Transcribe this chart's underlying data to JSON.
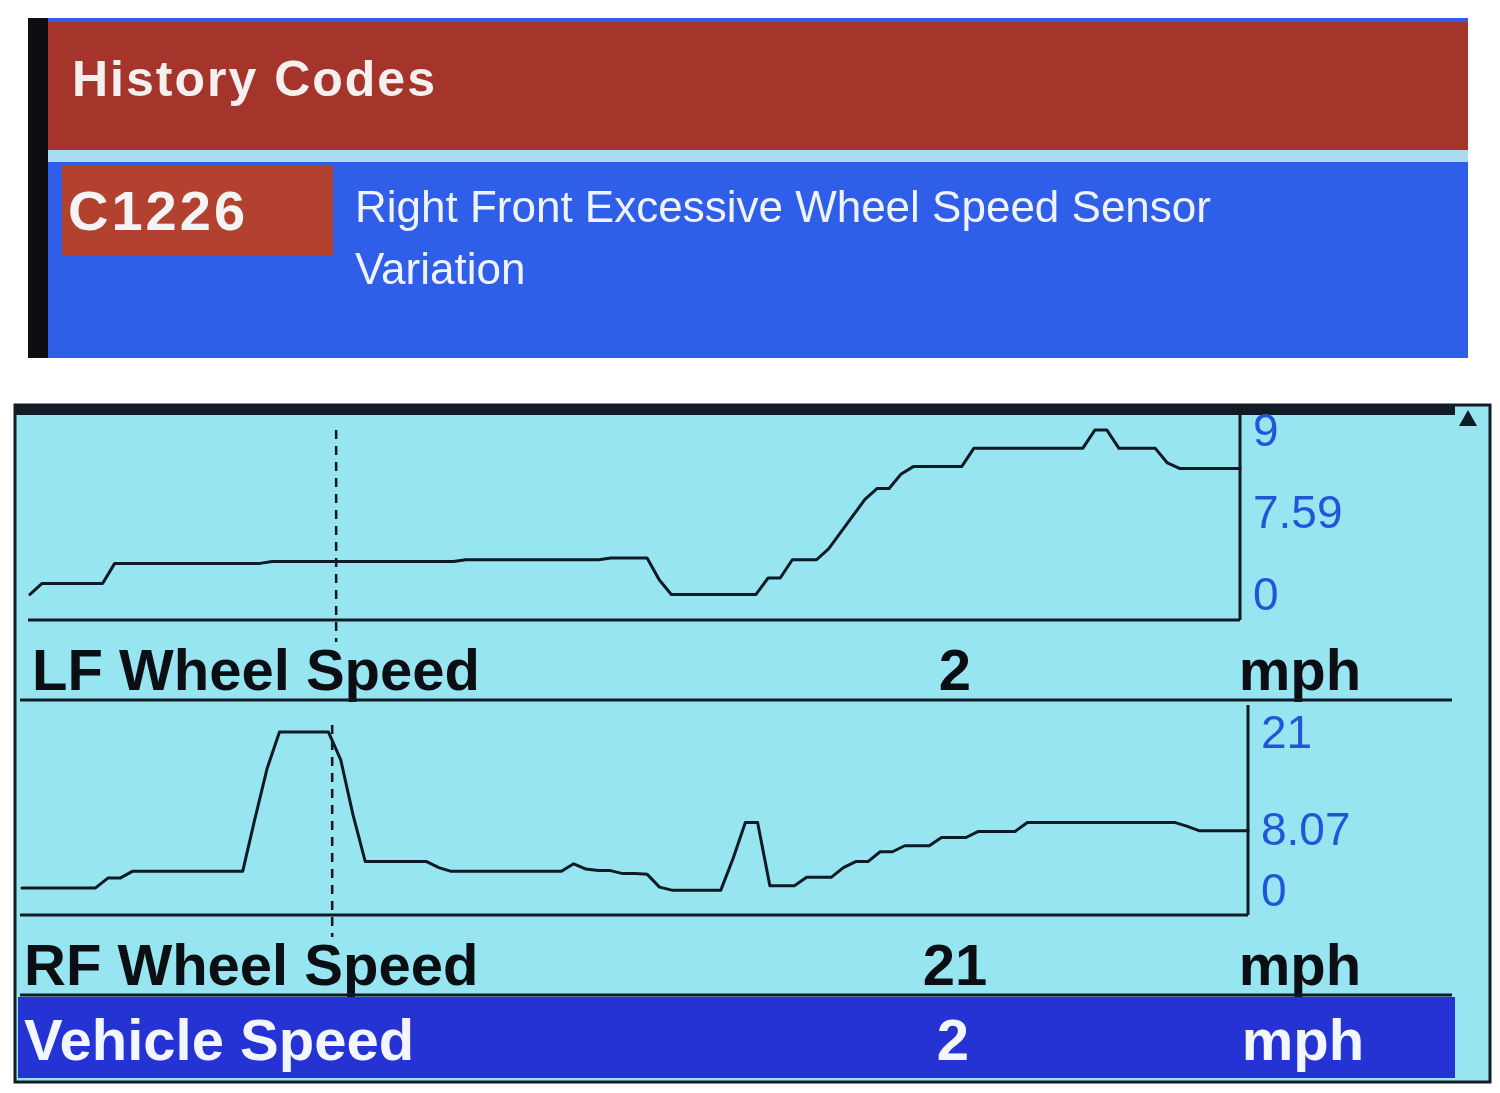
{
  "chart_data": [
    {
      "type": "other",
      "title": "History Codes",
      "annotations": [
        "C1226",
        "Right Front Excessive Wheel Speed Sensor Variation"
      ]
    },
    {
      "type": "line",
      "title": "LF Wheel Speed",
      "ylabel": "mph",
      "annotations": [
        "7.59",
        "2"
      ],
      "categories": [
        null,
        null,
        null,
        null,
        null,
        null,
        null,
        null,
        null,
        null,
        null,
        null,
        null,
        null,
        null,
        null,
        null,
        null,
        null,
        null,
        null,
        null,
        null,
        null,
        null,
        null,
        null,
        null,
        null,
        null,
        null,
        null,
        null,
        null,
        null,
        null,
        null,
        null,
        null,
        null,
        null,
        null,
        null,
        null,
        null,
        null,
        null,
        null,
        null,
        null,
        null,
        null,
        null,
        null,
        null,
        null,
        null,
        null,
        null,
        null,
        null,
        null,
        null,
        null,
        null,
        null,
        null,
        null,
        null,
        null,
        null,
        null,
        null,
        null,
        null,
        null,
        null,
        null,
        null,
        null,
        null,
        null,
        null,
        null,
        null,
        null,
        null,
        null,
        null,
        null,
        null,
        null,
        null,
        null,
        null,
        null,
        null,
        null,
        null,
        null,
        null
      ],
      "series": [
        {
          "color": "#0f1a24",
          "values": [
            0,
            0.6,
            0.6,
            0.6,
            0.6,
            0.6,
            0.6,
            1.7,
            1.7,
            1.7,
            1.7,
            1.7,
            1.7,
            1.7,
            1.7,
            1.7,
            1.7,
            1.7,
            1.7,
            1.7,
            1.8,
            1.8,
            1.8,
            1.8,
            1.8,
            1.8,
            1.8,
            1.8,
            1.8,
            1.8,
            1.8,
            1.8,
            1.8,
            1.8,
            1.8,
            1.8,
            1.9,
            1.9,
            1.9,
            1.9,
            1.9,
            1.9,
            1.9,
            1.9,
            1.9,
            1.9,
            1.9,
            1.9,
            2.0,
            2.0,
            2.0,
            2.0,
            0.8,
            0,
            0,
            0,
            0,
            0,
            0,
            0,
            0,
            0.9,
            0.9,
            1.9,
            1.9,
            1.9,
            2.5,
            3.4,
            4.3,
            5.2,
            5.8,
            5.8,
            6.6,
            7.0,
            7.0,
            7.0,
            7.0,
            7.0,
            8.0,
            8.0,
            8.0,
            8.0,
            8.0,
            8.0,
            8.0,
            8.0,
            8.0,
            8.0,
            9,
            9,
            8.0,
            8.0,
            8.0,
            8.0,
            7.2,
            6.9,
            6.9,
            6.9,
            6.9,
            6.9,
            6.9
          ]
        }
      ],
      "ylim": [
        -1.4,
        10.1
      ],
      "yticks": [
        0,
        9
      ],
      "tick_labels": "y"
    },
    {
      "type": "line",
      "title": "RF Wheel Speed",
      "ylabel": "mph",
      "annotations": [
        "21"
      ],
      "categories": [
        null,
        null,
        null,
        null,
        null,
        null,
        null,
        null,
        null,
        null,
        null,
        null,
        null,
        null,
        null,
        null,
        null,
        null,
        null,
        null,
        null,
        null,
        null,
        null,
        null,
        null,
        null,
        null,
        null,
        null,
        null,
        null,
        null,
        null,
        null,
        null,
        null,
        null,
        null,
        null,
        null,
        null,
        null,
        null,
        null,
        null,
        null,
        null,
        null,
        null,
        null,
        null,
        null,
        null,
        null,
        null,
        null,
        null,
        null,
        null,
        null,
        null,
        null,
        null,
        null,
        null,
        null,
        null,
        null,
        null,
        null,
        null,
        null,
        null,
        null,
        null,
        null,
        null,
        null,
        null,
        null,
        null,
        null,
        null,
        null,
        null,
        null,
        null,
        null,
        null,
        null,
        null,
        null,
        null,
        null,
        null,
        null,
        null,
        null,
        null,
        null
      ],
      "series": [
        {
          "color": "#0f1a24",
          "values": [
            0.3,
            0.3,
            0.3,
            0.3,
            0.3,
            0.3,
            0.3,
            1.6,
            1.6,
            2.5,
            2.5,
            2.5,
            2.5,
            2.5,
            2.5,
            2.5,
            2.5,
            2.5,
            2.5,
            9.5,
            16.2,
            21,
            21,
            21,
            21,
            21,
            17.3,
            10.0,
            3.8,
            3.8,
            3.8,
            3.8,
            3.8,
            3.8,
            3.0,
            2.5,
            2.5,
            2.5,
            2.5,
            2.5,
            2.5,
            2.5,
            2.5,
            2.5,
            2.5,
            3.5,
            2.8,
            2.6,
            2.6,
            2.2,
            2.2,
            2.1,
            0.4,
            0,
            0,
            0,
            0,
            0,
            4.2,
            9.0,
            9.0,
            0.6,
            0.6,
            0.6,
            1.7,
            1.7,
            1.7,
            3.0,
            3.8,
            3.8,
            5.1,
            5.1,
            5.9,
            5.9,
            5.9,
            7.0,
            7.0,
            7.0,
            7.8,
            7.8,
            7.8,
            7.8,
            9.0,
            9.0,
            9.0,
            9.0,
            9.0,
            9.0,
            9.0,
            9.0,
            9.0,
            9.0,
            9.0,
            9.0,
            9.0,
            8.5,
            7.9,
            7.9,
            7.9,
            7.9,
            7.9
          ]
        }
      ],
      "ylim": [
        -3.3,
        24.6
      ],
      "yticks": [
        0,
        8.07,
        21
      ],
      "tick_labels": "y"
    },
    {
      "type": "other",
      "title": "Vehicle Speed",
      "annotations": [
        "2",
        "mph"
      ]
    }
  ]
}
